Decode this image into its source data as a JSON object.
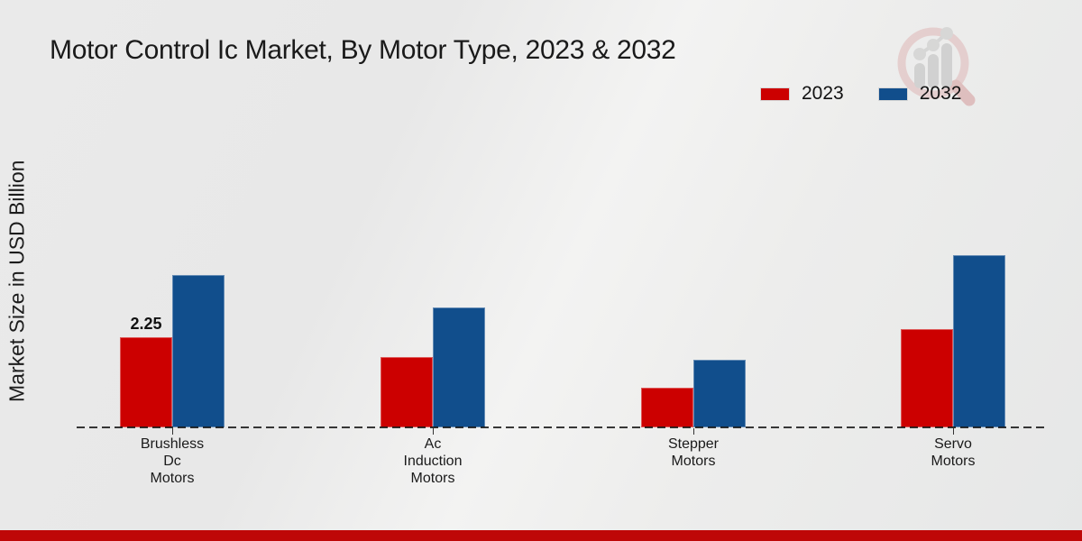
{
  "page": {
    "background_color": "#ebebeb",
    "footer_bar_color": "#be0707"
  },
  "chart_data": {
    "type": "bar",
    "title": "Motor Control Ic Market, By Motor Type, 2023 & 2032",
    "xlabel": "",
    "ylabel": "Market Size in USD Billion",
    "categories": [
      "Brushless\nDc\nMotors",
      "Ac\nInduction\nMotors",
      "Stepper\nMotors",
      "Servo\nMotors"
    ],
    "series": [
      {
        "name": "2023",
        "color": "#cc0000",
        "values": [
          2.25,
          1.75,
          1.0,
          2.45
        ]
      },
      {
        "name": "2032",
        "color": "#114e8c",
        "values": [
          3.8,
          3.0,
          1.7,
          4.3
        ]
      }
    ],
    "bar_labels": [
      {
        "series_index": 0,
        "category_index": 0,
        "text": "2.25"
      }
    ],
    "legend": {
      "position": "top-right"
    },
    "ylim": [
      0,
      4.5
    ],
    "grid": false,
    "baseline_style": "dashed",
    "y_axis_ticks_visible": false
  },
  "watermark": {
    "name": "magnifier-growth-chart-logo"
  }
}
